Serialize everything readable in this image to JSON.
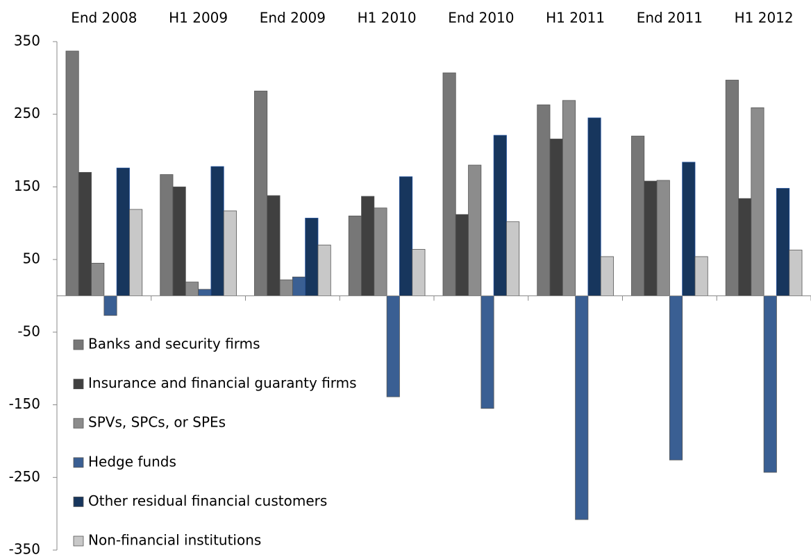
{
  "chart_data": {
    "type": "bar",
    "categories": [
      "End 2008",
      "H1 2009",
      "End 2009",
      "H1 2010",
      "End 2010",
      "H1 2011",
      "End 2011",
      "H1 2012"
    ],
    "series": [
      {
        "name": "Banks and security firms",
        "color": "#777777",
        "values": [
          337,
          167,
          282,
          110,
          307,
          263,
          220,
          297
        ]
      },
      {
        "name": "Insurance and financial guaranty firms",
        "color": "#404040",
        "values": [
          170,
          150,
          138,
          137,
          112,
          216,
          158,
          134
        ]
      },
      {
        "name": "SPVs, SPCs, or SPEs",
        "color": "#8c8c8c",
        "values": [
          45,
          19,
          22,
          121,
          180,
          269,
          159,
          259
        ]
      },
      {
        "name": "Hedge funds",
        "color": "#3a5f93",
        "values": [
          -27,
          9,
          26,
          -139,
          -155,
          -308,
          -226,
          -243
        ]
      },
      {
        "name": "Other residual financial customers",
        "color": "#17365d",
        "values": [
          176,
          178,
          107,
          164,
          221,
          245,
          184,
          148
        ]
      },
      {
        "name": "Non-financial institutions",
        "color": "#c8c8c8",
        "values": [
          119,
          117,
          70,
          64,
          102,
          54,
          54,
          63
        ]
      }
    ],
    "ylim": [
      -350,
      350
    ],
    "yticks": [
      -350,
      -250,
      -150,
      -50,
      50,
      150,
      250,
      350
    ],
    "legend": "lower left",
    "grid": false
  }
}
